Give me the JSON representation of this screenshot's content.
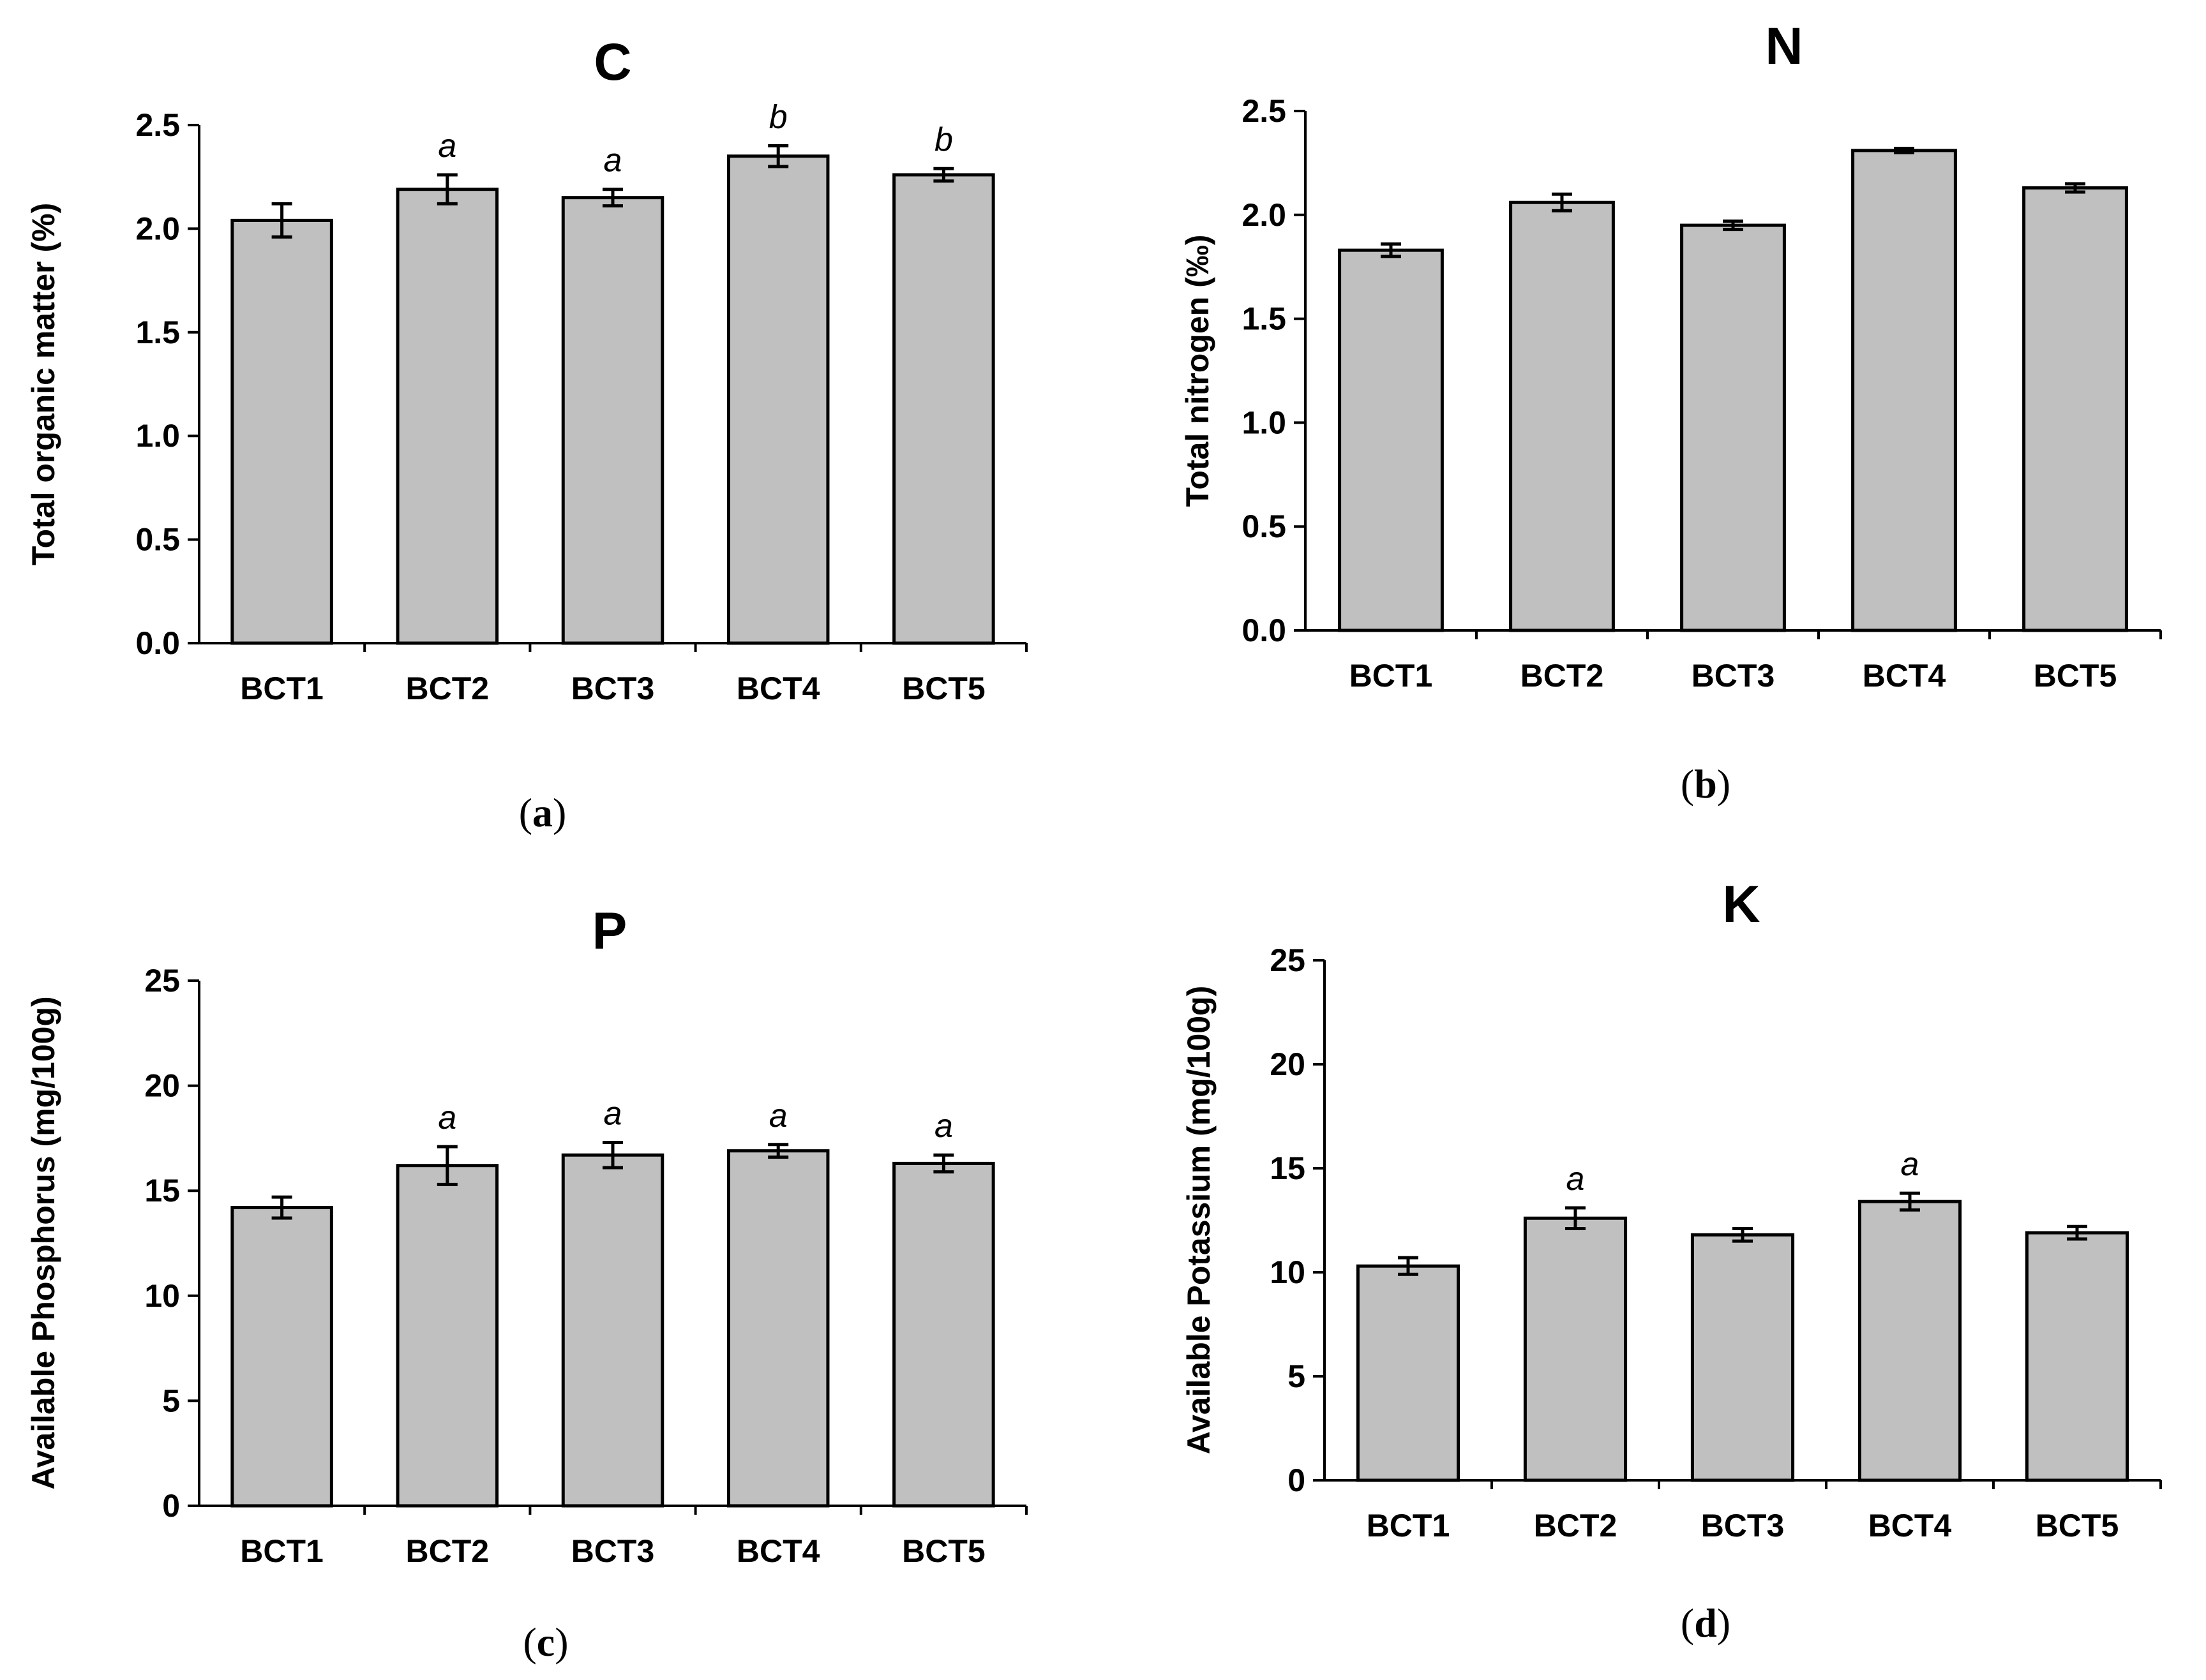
{
  "figure": {
    "colors": {
      "bar_fill": "#c0c0c0",
      "stroke": "#000000",
      "background": "#ffffff"
    }
  },
  "chart_data": [
    {
      "type": "bar",
      "panel": "(a)",
      "caption": {
        "open": "(",
        "letter": "a",
        "close": ")"
      },
      "title": "C",
      "ylabel": "Total organic matter (%)",
      "xlabel": "",
      "categories": [
        "BCT1",
        "BCT2",
        "BCT3",
        "BCT4",
        "BCT5"
      ],
      "values": [
        2.04,
        2.19,
        2.15,
        2.35,
        2.26
      ],
      "errors": [
        0.08,
        0.07,
        0.04,
        0.05,
        0.03
      ],
      "significance": [
        "",
        "a",
        "a",
        "b",
        "b"
      ],
      "ylim": [
        0,
        2.5
      ],
      "yticks": [
        0.0,
        0.5,
        1.0,
        1.5,
        2.0,
        2.5
      ],
      "ytick_labels": [
        "0.0",
        "0.5",
        "1.0",
        "1.5",
        "2.0",
        "2.5"
      ]
    },
    {
      "type": "bar",
      "panel": "(b)",
      "caption": {
        "open": "(",
        "letter": "b",
        "close": ")"
      },
      "title": "N",
      "ylabel": "Total nitrogen (‰)",
      "xlabel": "",
      "categories": [
        "BCT1",
        "BCT2",
        "BCT3",
        "BCT4",
        "BCT5"
      ],
      "values": [
        1.83,
        2.06,
        1.95,
        2.31,
        2.13
      ],
      "errors": [
        0.03,
        0.04,
        0.02,
        0.01,
        0.02
      ],
      "significance": [
        "",
        "",
        "",
        "",
        ""
      ],
      "ylim": [
        0,
        2.5
      ],
      "yticks": [
        0.0,
        0.5,
        1.0,
        1.5,
        2.0,
        2.5
      ],
      "ytick_labels": [
        "0.0",
        "0.5",
        "1.0",
        "1.5",
        "2.0",
        "2.5"
      ]
    },
    {
      "type": "bar",
      "panel": "(c)",
      "caption": {
        "open": "(",
        "letter": "c",
        "close": ")"
      },
      "title": "P",
      "ylabel": "Available Phosphorus (mg/100g)",
      "xlabel": "",
      "categories": [
        "BCT1",
        "BCT2",
        "BCT3",
        "BCT4",
        "BCT5"
      ],
      "values": [
        14.2,
        16.2,
        16.7,
        16.9,
        16.3
      ],
      "errors": [
        0.5,
        0.9,
        0.6,
        0.3,
        0.4
      ],
      "significance": [
        "",
        "a",
        "a",
        "a",
        "a"
      ],
      "ylim": [
        0,
        25
      ],
      "yticks": [
        0,
        5,
        10,
        15,
        20,
        25
      ],
      "ytick_labels": [
        "0",
        "5",
        "10",
        "15",
        "20",
        "25"
      ]
    },
    {
      "type": "bar",
      "panel": "(d)",
      "caption": {
        "open": "(",
        "letter": "d",
        "close": ")"
      },
      "title": "K",
      "ylabel": "Available Potassium (mg/100g)",
      "xlabel": "",
      "categories": [
        "BCT1",
        "BCT2",
        "BCT3",
        "BCT4",
        "BCT5"
      ],
      "values": [
        10.3,
        12.6,
        11.8,
        13.4,
        11.9
      ],
      "errors": [
        0.4,
        0.5,
        0.3,
        0.4,
        0.3
      ],
      "significance": [
        "",
        "a",
        "",
        "a",
        ""
      ],
      "ylim": [
        0,
        25
      ],
      "yticks": [
        0,
        5,
        10,
        15,
        20,
        25
      ],
      "ytick_labels": [
        "0",
        "5",
        "10",
        "15",
        "20",
        "25"
      ]
    }
  ]
}
